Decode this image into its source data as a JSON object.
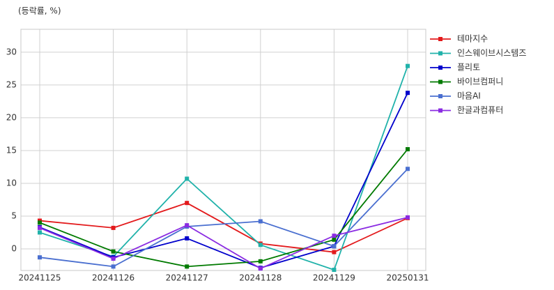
{
  "chart_data": {
    "type": "line",
    "y_label": "(등락률, %)",
    "categories": [
      "20241125",
      "20241126",
      "20241127",
      "20241128",
      "20241129",
      "20250131"
    ],
    "series": [
      {
        "name": "테마지수",
        "color": "#e31a1c",
        "values": [
          4.3,
          3.2,
          7.0,
          0.8,
          -0.5,
          4.7
        ]
      },
      {
        "name": "인스웨이브시스템즈",
        "color": "#20b2aa",
        "values": [
          2.5,
          -1.2,
          10.7,
          0.6,
          -3.2,
          27.9
        ]
      },
      {
        "name": "플리토",
        "color": "#0000cc",
        "values": [
          3.3,
          -1.3,
          1.6,
          -2.9,
          0.4,
          23.8
        ]
      },
      {
        "name": "바이브컴퍼니",
        "color": "#007a00",
        "values": [
          4.0,
          -0.4,
          -2.7,
          -1.9,
          1.4,
          15.2
        ]
      },
      {
        "name": "마음AI",
        "color": "#4a6fd0",
        "values": [
          -1.3,
          -2.7,
          3.4,
          4.2,
          0.4,
          12.2
        ]
      },
      {
        "name": "한글과컴퓨터",
        "color": "#8a2be2",
        "values": [
          3.2,
          -1.5,
          3.6,
          -3.0,
          2.0,
          4.8
        ]
      }
    ],
    "ylim": [
      -3.3,
      33.5
    ],
    "yticks": [
      0,
      5,
      10,
      15,
      20,
      25,
      30
    ],
    "grid": true,
    "legend": "right"
  }
}
